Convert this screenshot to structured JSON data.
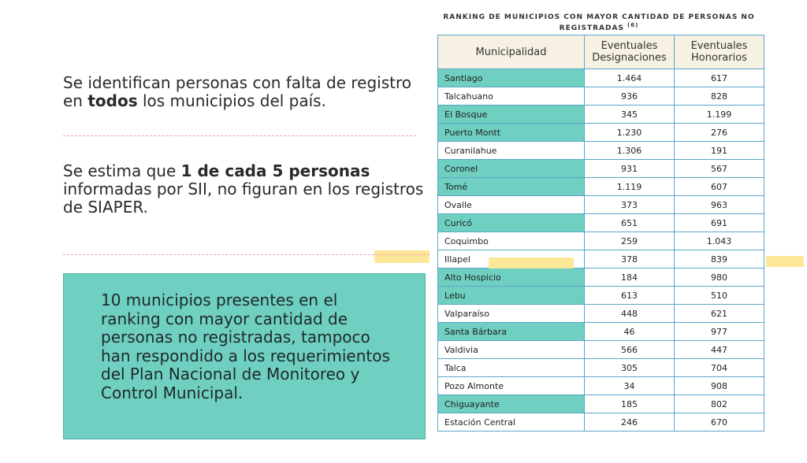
{
  "left": {
    "paragraphs": [
      [
        {
          "text": "Se identifican personas con falta de registro en ",
          "bold": false
        },
        {
          "text": "todos",
          "bold": true
        },
        {
          "text": " los municipios del país.",
          "bold": false
        }
      ],
      [
        {
          "text": "Se estima que ",
          "bold": false
        },
        {
          "text": "1 de cada 5 personas",
          "bold": true
        },
        {
          "text": " informadas por SII, no figuran en los registros de SIAPER.",
          "bold": false
        }
      ]
    ],
    "callout": "10 municipios presentes en el ranking con mayor cantidad de personas no registradas, tampoco han respondido a los requerimientos del Plan Nacional de Monitoreo y Control Municipal."
  },
  "table": {
    "title": "RANKING DE MUNICIPIOS CON MAYOR CANTIDAD DE PERSONAS NO REGISTRADAS",
    "title_note": "(6)",
    "header": [
      "Municipalidad",
      "Eventuales Designaciones",
      "Eventuales Honorarios"
    ],
    "rows": [
      {
        "cells": [
          "Santiago",
          "1.464",
          "617"
        ],
        "highlighted": true
      },
      {
        "cells": [
          "Talcahuano",
          "936",
          "828"
        ],
        "highlighted": false
      },
      {
        "cells": [
          "El Bosque",
          "345",
          "1.199"
        ],
        "highlighted": true
      },
      {
        "cells": [
          "Puerto Montt",
          "1.230",
          "276"
        ],
        "highlighted": true
      },
      {
        "cells": [
          "Curanilahue",
          "1.306",
          "191"
        ],
        "highlighted": false
      },
      {
        "cells": [
          "Coronel",
          "931",
          "567"
        ],
        "highlighted": true
      },
      {
        "cells": [
          "Tomé",
          "1.119",
          "607"
        ],
        "highlighted": true
      },
      {
        "cells": [
          "Ovalle",
          "373",
          "963"
        ],
        "highlighted": false
      },
      {
        "cells": [
          "Curicó",
          "651",
          "691"
        ],
        "highlighted": true
      },
      {
        "cells": [
          "Coquimbo",
          "259",
          "1.043"
        ],
        "highlighted": false
      },
      {
        "cells": [
          "Illapel",
          "378",
          "839"
        ],
        "highlighted": false
      },
      {
        "cells": [
          "Alto Hospicio",
          "184",
          "980"
        ],
        "highlighted": true
      },
      {
        "cells": [
          "Lebu",
          "613",
          "510"
        ],
        "highlighted": true
      },
      {
        "cells": [
          "Valparaíso",
          "448",
          "621"
        ],
        "highlighted": false
      },
      {
        "cells": [
          "Santa Bárbara",
          "46",
          "977"
        ],
        "highlighted": true
      },
      {
        "cells": [
          "Valdivia",
          "566",
          "447"
        ],
        "highlighted": false
      },
      {
        "cells": [
          "Talca",
          "305",
          "704"
        ],
        "highlighted": false
      },
      {
        "cells": [
          "Pozo Almonte",
          "34",
          "908"
        ],
        "highlighted": false
      },
      {
        "cells": [
          "Chiguayante",
          "185",
          "802"
        ],
        "highlighted": true
      },
      {
        "cells": [
          "Estación Central",
          "246",
          "670"
        ],
        "highlighted": false
      }
    ]
  }
}
